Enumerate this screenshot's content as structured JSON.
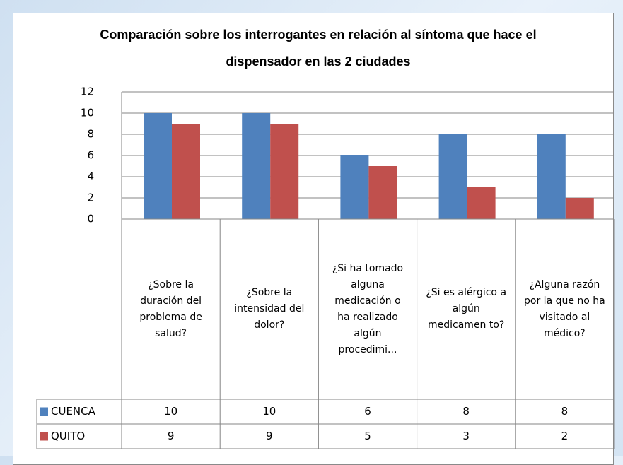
{
  "chart_data": {
    "type": "bar",
    "title": "Comparación sobre los interrogantes en relación al síntoma que hace el dispensador en las 2 ciudades",
    "categories": [
      "¿Sobre la duración del problema de salud?",
      "¿Sobre la intensidad del dolor?",
      "¿Si ha tomado alguna medicación o ha realizado algún procedimi...",
      "¿Si es alérgico a algún medicamen to?",
      "¿Alguna razón por la que no ha visitado al médico?"
    ],
    "series": [
      {
        "name": "CUENCA",
        "color": "#4f81bd",
        "values": [
          10,
          10,
          6,
          8,
          8
        ]
      },
      {
        "name": "QUITO",
        "color": "#c0504d",
        "values": [
          9,
          9,
          5,
          3,
          2
        ]
      }
    ],
    "ylim": [
      0,
      12
    ],
    "yticks": [
      0,
      2,
      4,
      6,
      8,
      10,
      12
    ],
    "grid": true,
    "data_table": true
  }
}
